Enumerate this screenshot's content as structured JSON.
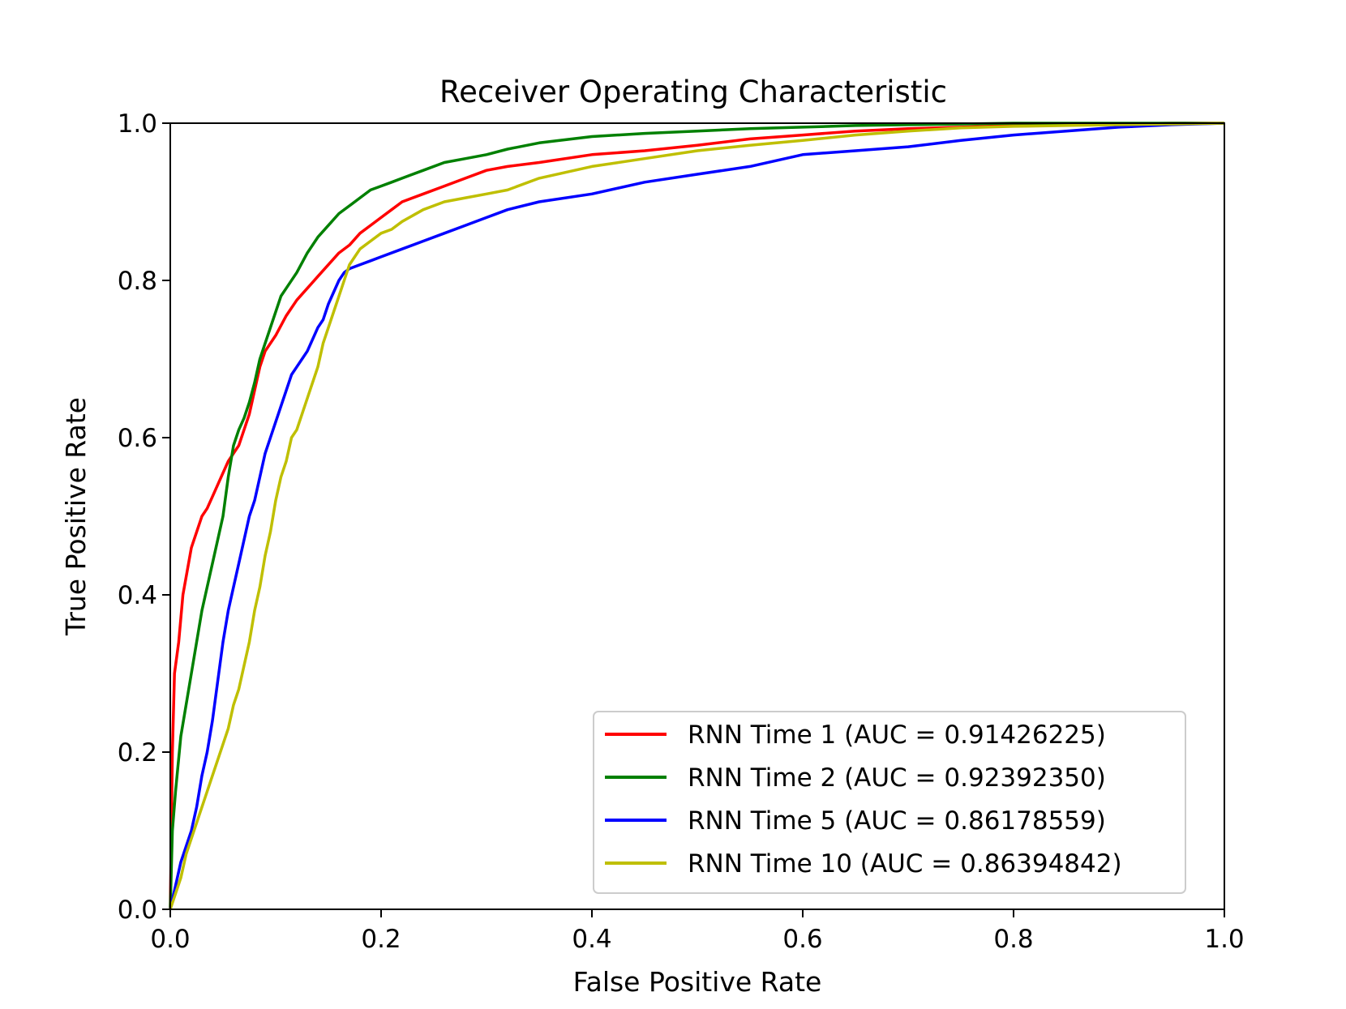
{
  "chart_data": {
    "type": "line",
    "title": "Receiver Operating Characteristic",
    "xlabel": "False Positive Rate",
    "ylabel": "True Positive Rate",
    "xlim": [
      0,
      1
    ],
    "ylim": [
      0,
      1
    ],
    "xticks": [
      0.0,
      0.2,
      0.4,
      0.6,
      0.8,
      1.0
    ],
    "yticks": [
      0.0,
      0.2,
      0.4,
      0.6,
      0.8,
      1.0
    ],
    "xtick_labels": [
      "0.0",
      "0.2",
      "0.4",
      "0.6",
      "0.8",
      "1.0"
    ],
    "ytick_labels": [
      "0.0",
      "0.2",
      "0.4",
      "0.6",
      "0.8",
      "1.0"
    ],
    "grid": false,
    "legend_position": "lower-right",
    "series": [
      {
        "name": "RNN Time 1 (AUC = 0.91426225)",
        "color": "#ff0000",
        "x": [
          0.0,
          0.002,
          0.004,
          0.008,
          0.012,
          0.016,
          0.02,
          0.025,
          0.03,
          0.035,
          0.04,
          0.045,
          0.05,
          0.055,
          0.06,
          0.065,
          0.07,
          0.075,
          0.08,
          0.085,
          0.09,
          0.1,
          0.11,
          0.12,
          0.13,
          0.14,
          0.15,
          0.16,
          0.17,
          0.18,
          0.19,
          0.2,
          0.21,
          0.22,
          0.24,
          0.26,
          0.28,
          0.3,
          0.32,
          0.35,
          0.4,
          0.45,
          0.5,
          0.55,
          0.6,
          0.65,
          0.7,
          0.75,
          0.8,
          0.85,
          0.9,
          0.95,
          1.0
        ],
        "y": [
          0.0,
          0.2,
          0.3,
          0.34,
          0.4,
          0.43,
          0.46,
          0.48,
          0.5,
          0.51,
          0.525,
          0.54,
          0.555,
          0.57,
          0.58,
          0.59,
          0.61,
          0.63,
          0.66,
          0.69,
          0.71,
          0.73,
          0.755,
          0.775,
          0.79,
          0.805,
          0.82,
          0.835,
          0.845,
          0.86,
          0.87,
          0.88,
          0.89,
          0.9,
          0.91,
          0.92,
          0.93,
          0.94,
          0.945,
          0.95,
          0.96,
          0.965,
          0.972,
          0.98,
          0.985,
          0.99,
          0.993,
          0.995,
          0.997,
          0.998,
          0.999,
          1.0,
          1.0
        ]
      },
      {
        "name": "RNN Time 2 (AUC = 0.92392350)",
        "color": "#008000",
        "x": [
          0.0,
          0.002,
          0.005,
          0.01,
          0.015,
          0.02,
          0.025,
          0.03,
          0.035,
          0.04,
          0.045,
          0.05,
          0.055,
          0.06,
          0.065,
          0.07,
          0.075,
          0.08,
          0.085,
          0.09,
          0.095,
          0.1,
          0.105,
          0.11,
          0.12,
          0.13,
          0.14,
          0.15,
          0.16,
          0.17,
          0.18,
          0.19,
          0.2,
          0.21,
          0.22,
          0.24,
          0.26,
          0.28,
          0.3,
          0.32,
          0.35,
          0.4,
          0.45,
          0.5,
          0.55,
          0.6,
          0.65,
          0.7,
          0.75,
          0.8,
          0.85,
          0.9,
          0.95,
          1.0
        ],
        "y": [
          0.0,
          0.1,
          0.15,
          0.22,
          0.26,
          0.3,
          0.34,
          0.38,
          0.41,
          0.44,
          0.47,
          0.5,
          0.55,
          0.59,
          0.61,
          0.625,
          0.645,
          0.67,
          0.7,
          0.72,
          0.74,
          0.76,
          0.78,
          0.79,
          0.81,
          0.835,
          0.855,
          0.87,
          0.885,
          0.895,
          0.905,
          0.915,
          0.92,
          0.925,
          0.93,
          0.94,
          0.95,
          0.955,
          0.96,
          0.967,
          0.975,
          0.983,
          0.987,
          0.99,
          0.993,
          0.995,
          0.997,
          0.998,
          0.999,
          1.0,
          1.0,
          1.0,
          1.0,
          1.0
        ]
      },
      {
        "name": "RNN Time 5 (AUC = 0.86178559)",
        "color": "#0000ff",
        "x": [
          0.0,
          0.005,
          0.01,
          0.015,
          0.02,
          0.025,
          0.03,
          0.035,
          0.04,
          0.045,
          0.05,
          0.055,
          0.06,
          0.065,
          0.07,
          0.075,
          0.08,
          0.085,
          0.09,
          0.095,
          0.1,
          0.105,
          0.11,
          0.115,
          0.12,
          0.125,
          0.13,
          0.135,
          0.14,
          0.145,
          0.15,
          0.155,
          0.16,
          0.165,
          0.17,
          0.18,
          0.19,
          0.2,
          0.22,
          0.24,
          0.26,
          0.28,
          0.3,
          0.32,
          0.35,
          0.4,
          0.45,
          0.5,
          0.55,
          0.6,
          0.65,
          0.7,
          0.75,
          0.8,
          0.85,
          0.9,
          0.95,
          1.0
        ],
        "y": [
          0.0,
          0.03,
          0.06,
          0.08,
          0.1,
          0.13,
          0.17,
          0.2,
          0.24,
          0.29,
          0.34,
          0.38,
          0.41,
          0.44,
          0.47,
          0.5,
          0.52,
          0.55,
          0.58,
          0.6,
          0.62,
          0.64,
          0.66,
          0.68,
          0.69,
          0.7,
          0.71,
          0.725,
          0.74,
          0.75,
          0.77,
          0.785,
          0.8,
          0.81,
          0.815,
          0.82,
          0.825,
          0.83,
          0.84,
          0.85,
          0.86,
          0.87,
          0.88,
          0.89,
          0.9,
          0.91,
          0.925,
          0.935,
          0.945,
          0.96,
          0.965,
          0.97,
          0.978,
          0.985,
          0.99,
          0.995,
          0.998,
          1.0
        ]
      },
      {
        "name": "RNN Time 10 (AUC = 0.86394842)",
        "color": "#bfbf00",
        "x": [
          0.0,
          0.005,
          0.01,
          0.015,
          0.02,
          0.025,
          0.03,
          0.035,
          0.04,
          0.045,
          0.05,
          0.055,
          0.06,
          0.065,
          0.07,
          0.075,
          0.08,
          0.085,
          0.09,
          0.095,
          0.1,
          0.105,
          0.11,
          0.115,
          0.12,
          0.125,
          0.13,
          0.135,
          0.14,
          0.145,
          0.15,
          0.155,
          0.16,
          0.165,
          0.17,
          0.175,
          0.18,
          0.19,
          0.2,
          0.21,
          0.22,
          0.24,
          0.26,
          0.28,
          0.3,
          0.32,
          0.35,
          0.4,
          0.45,
          0.5,
          0.55,
          0.6,
          0.65,
          0.7,
          0.75,
          0.8,
          0.85,
          0.9,
          0.95,
          1.0
        ],
        "y": [
          0.0,
          0.02,
          0.04,
          0.07,
          0.09,
          0.11,
          0.13,
          0.15,
          0.17,
          0.19,
          0.21,
          0.23,
          0.26,
          0.28,
          0.31,
          0.34,
          0.38,
          0.41,
          0.45,
          0.48,
          0.52,
          0.55,
          0.57,
          0.6,
          0.61,
          0.63,
          0.65,
          0.67,
          0.69,
          0.72,
          0.74,
          0.76,
          0.78,
          0.8,
          0.82,
          0.83,
          0.84,
          0.85,
          0.86,
          0.865,
          0.875,
          0.89,
          0.9,
          0.905,
          0.91,
          0.915,
          0.93,
          0.945,
          0.955,
          0.965,
          0.972,
          0.978,
          0.985,
          0.99,
          0.994,
          0.996,
          0.997,
          0.998,
          0.999,
          1.0
        ]
      }
    ]
  }
}
